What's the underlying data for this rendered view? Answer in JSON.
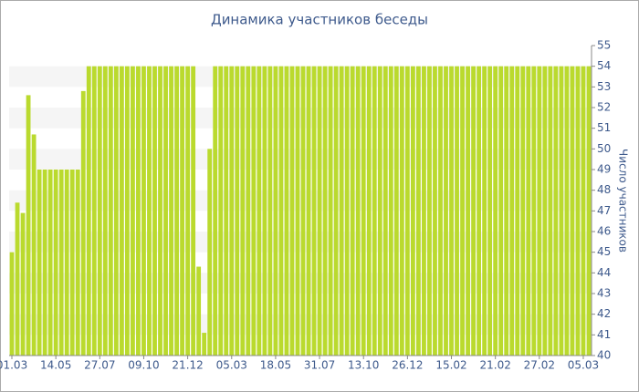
{
  "chart_data": {
    "type": "bar",
    "title": "Динамика участников беседы",
    "y_label": "Число участников",
    "categories": [
      "01.03",
      null,
      null,
      null,
      null,
      null,
      null,
      null,
      "14.05",
      null,
      null,
      null,
      null,
      null,
      null,
      null,
      "27.07",
      null,
      null,
      null,
      null,
      null,
      null,
      null,
      "09.10",
      null,
      null,
      null,
      null,
      null,
      null,
      null,
      "21.12",
      null,
      null,
      null,
      null,
      null,
      null,
      null,
      "05.03",
      null,
      null,
      null,
      null,
      null,
      null,
      null,
      "18.05",
      null,
      null,
      null,
      null,
      null,
      null,
      null,
      "31.07",
      null,
      null,
      null,
      null,
      null,
      null,
      null,
      "13.10",
      null,
      null,
      null,
      null,
      null,
      null,
      null,
      "26.12",
      null,
      null,
      null,
      null,
      null,
      null,
      null,
      "15.02",
      null,
      null,
      null,
      null,
      null,
      null,
      null,
      "21.02",
      null,
      null,
      null,
      null,
      null,
      null,
      null,
      "27.02",
      null,
      null,
      null,
      null,
      null,
      null,
      null,
      "05.03",
      null
    ],
    "values": [
      45,
      47.4,
      46.9,
      52.6,
      50.7,
      49,
      49,
      49,
      49,
      49,
      49,
      49,
      49,
      52.8,
      54,
      54,
      54,
      54,
      54,
      54,
      54,
      54,
      54,
      54,
      54,
      54,
      54,
      54,
      54,
      54,
      54,
      54,
      54,
      54,
      44.3,
      41.1,
      50,
      54,
      54,
      54,
      54,
      54,
      54,
      54,
      54,
      54,
      54,
      54,
      54,
      54,
      54,
      54,
      54,
      54,
      54,
      54,
      54,
      54,
      54,
      54,
      54,
      54,
      54,
      54,
      54,
      54,
      54,
      54,
      54,
      54,
      54,
      54,
      54,
      54,
      54,
      54,
      54,
      54,
      54,
      54,
      54,
      54,
      54,
      54,
      54,
      54,
      54,
      54,
      54,
      54,
      54,
      54,
      54,
      54,
      54,
      54,
      54,
      54,
      54,
      54,
      54,
      54,
      54,
      54,
      54,
      54
    ],
    "color": "#bada2e",
    "ylim": [
      40,
      55
    ],
    "yticks": [
      40,
      41,
      42,
      43,
      44,
      45,
      46,
      47,
      48,
      49,
      50,
      51,
      52,
      53,
      54,
      55
    ],
    "grid": true
  }
}
